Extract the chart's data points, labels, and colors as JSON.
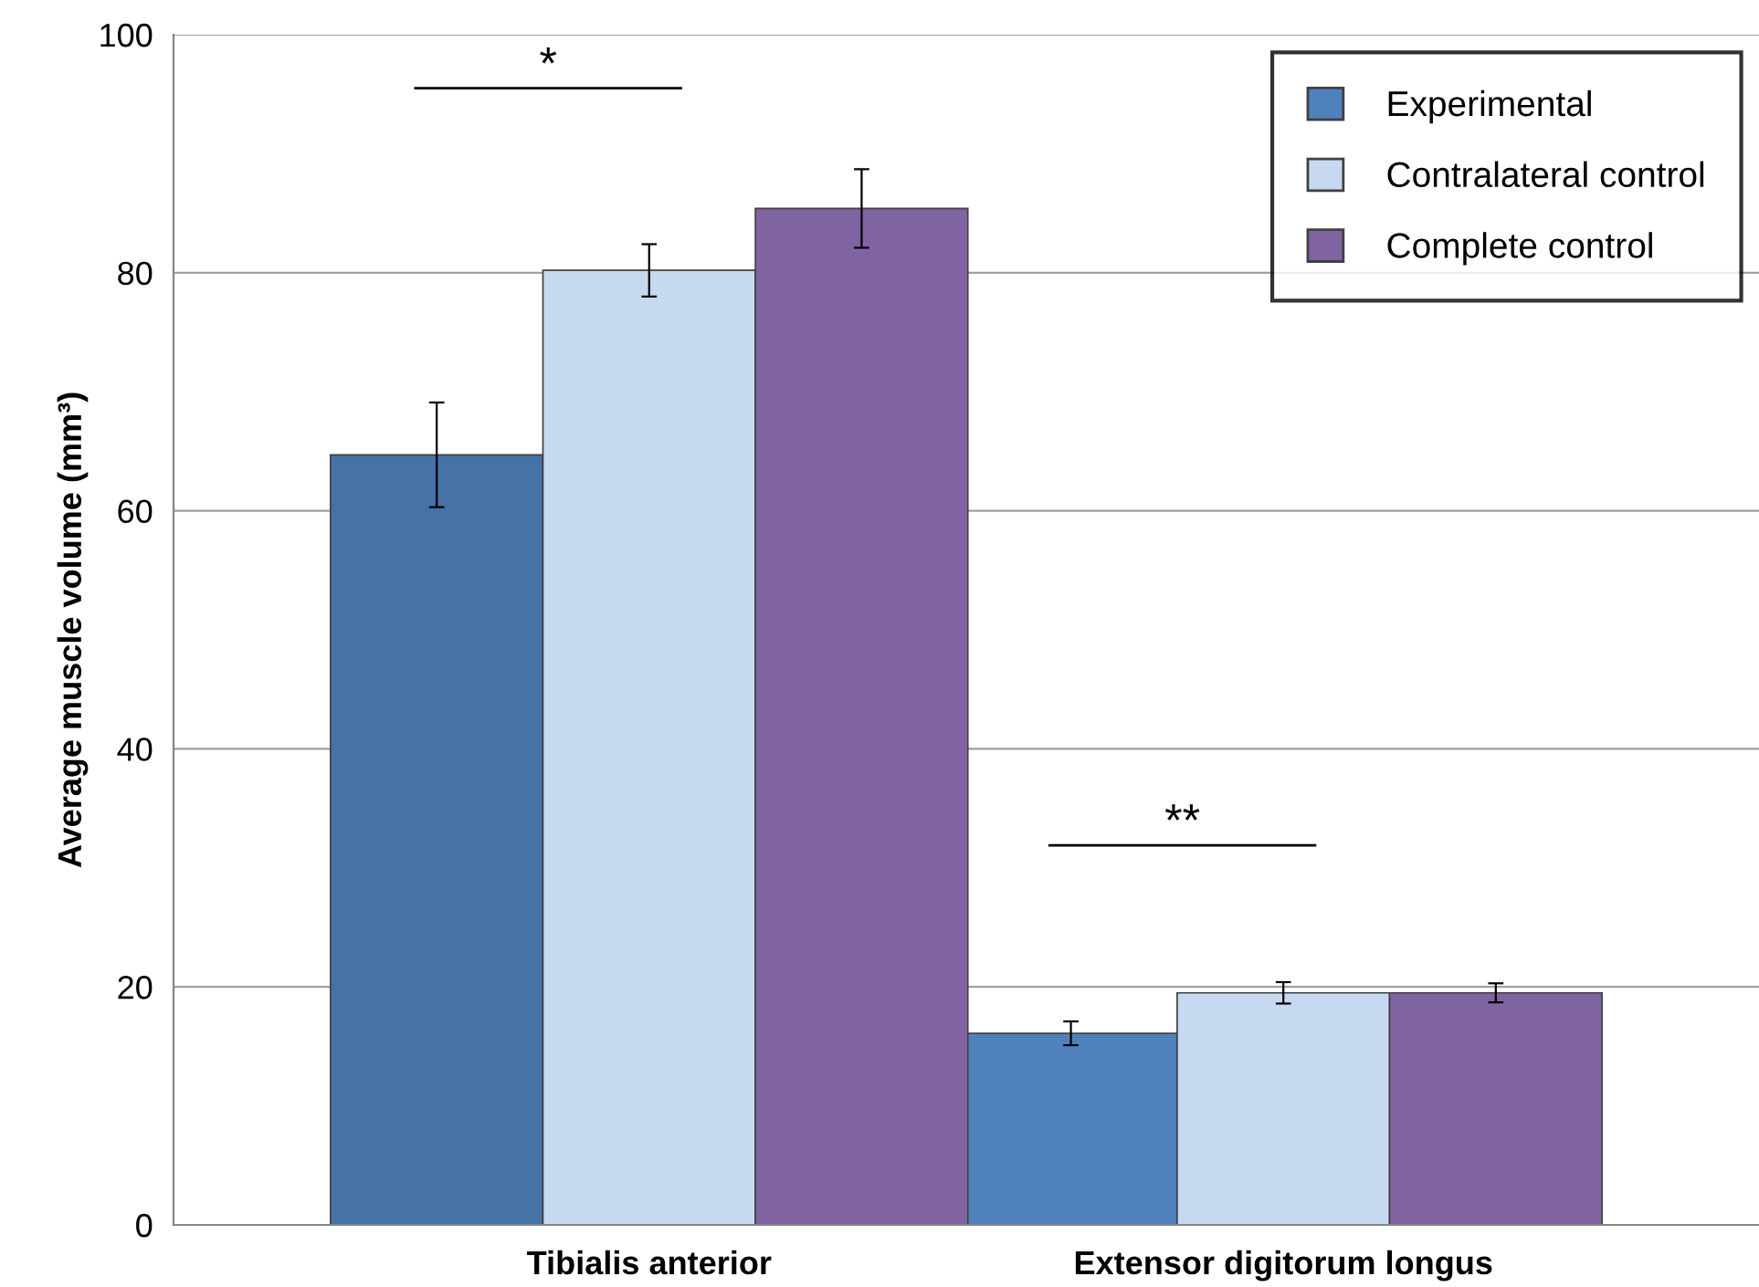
{
  "chart_data": {
    "type": "bar",
    "ylabel": "Average muscle volume (mm³)",
    "categories": [
      "Tibialis anterior",
      "Extensor digitorum longus"
    ],
    "series": [
      {
        "name": "Experimental",
        "color": "#4f81bd",
        "colors": [
          "#4572a7",
          "#4f81bd"
        ],
        "values": [
          64.7,
          16.1
        ],
        "errors": [
          4.4,
          1.0
        ]
      },
      {
        "name": "Contralateral control",
        "color": "#c6d9f1",
        "values": [
          80.2,
          19.5
        ],
        "errors": [
          2.2,
          0.9
        ]
      },
      {
        "name": "Complete control",
        "color": "#8064a2",
        "values": [
          85.4,
          19.5
        ],
        "errors": [
          3.3,
          0.8
        ]
      }
    ],
    "ylim": [
      0,
      100
    ],
    "yticks": [
      0,
      20,
      40,
      60,
      80,
      100
    ],
    "grid": "y",
    "legend": "top right",
    "annotations": [
      "*",
      "**"
    ]
  }
}
